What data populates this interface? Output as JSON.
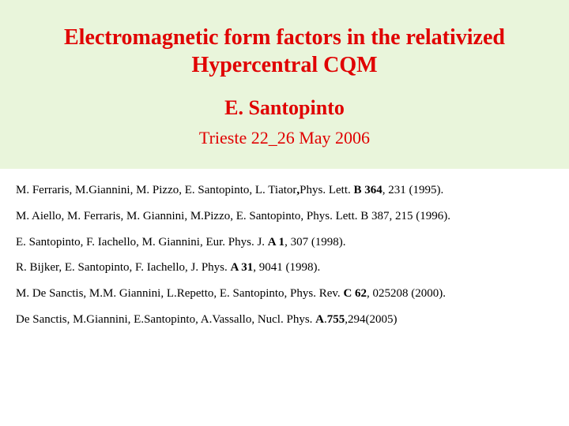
{
  "colors": {
    "title_block_bg": "#e9f5db",
    "title_text": "#e00000",
    "body_bg": "#ffffff",
    "ref_text": "#000000"
  },
  "typography": {
    "family": "Times New Roman",
    "title_fontsize_pt": 21,
    "author_fontsize_pt": 20,
    "date_fontsize_pt": 17,
    "ref_fontsize_pt": 11
  },
  "title": {
    "line1": "Electromagnetic form factors in the relativized",
    "line2": "Hypercentral CQM",
    "author": "E. Santopinto",
    "date": "Trieste  22_26 May 2006"
  },
  "references": [
    {
      "pre": "M. Ferraris, M.Giannini, M. Pizzo, E. Santopinto, L. Tiator",
      "bold1": ",",
      "mid": "Phys. Lett. ",
      "bold2": "B 364",
      "post": ", 231 (1995)."
    },
    {
      "pre": "M. Aiello, M. Ferraris, M. Giannini, M.Pizzo, E. Santopinto, Phys. Lett. B 387, 215 (1996).",
      "bold1": "",
      "mid": "",
      "bold2": "",
      "post": ""
    },
    {
      "pre": "E. Santopinto, F. Iachello, M. Giannini, Eur. Phys. J. ",
      "bold1": "A 1",
      "mid": ", 307 (1998).",
      "bold2": "",
      "post": ""
    },
    {
      "pre": "R. Bijker, E. Santopinto, F. Iachello, J. Phys.  ",
      "bold1": "A 31",
      "mid": ", 9041 (1998).",
      "bold2": "",
      "post": ""
    },
    {
      "pre": "M. De Sanctis, M.M. Giannini, L.Repetto,  E. Santopinto, Phys. Rev. ",
      "bold1": "C 62",
      "mid": ", 025208 (2000).",
      "bold2": "",
      "post": ""
    },
    {
      "pre": "De Sanctis, M.Giannini, E.Santopinto, A.Vassallo, Nucl. Phys. ",
      "bold1": "A",
      "mid": ".",
      "bold2": "755",
      "post": ",294(2005)"
    }
  ]
}
